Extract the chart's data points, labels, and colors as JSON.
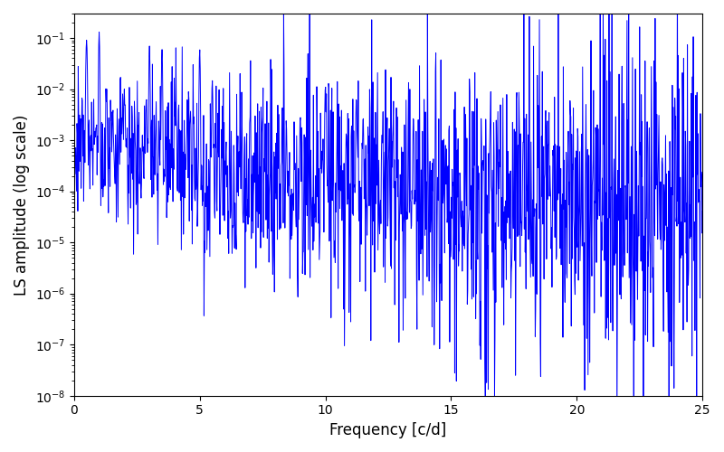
{
  "xlabel": "Frequency [c/d]",
  "ylabel": "LS amplitude (log scale)",
  "xlim": [
    0,
    25
  ],
  "ylim": [
    1e-08,
    0.3
  ],
  "line_color": "#0000ff",
  "line_width": 0.7,
  "background_color": "#ffffff",
  "figsize": [
    8.0,
    5.0
  ],
  "dpi": 100,
  "n_points": 1500,
  "freq_max": 25.0,
  "seed": 12345
}
